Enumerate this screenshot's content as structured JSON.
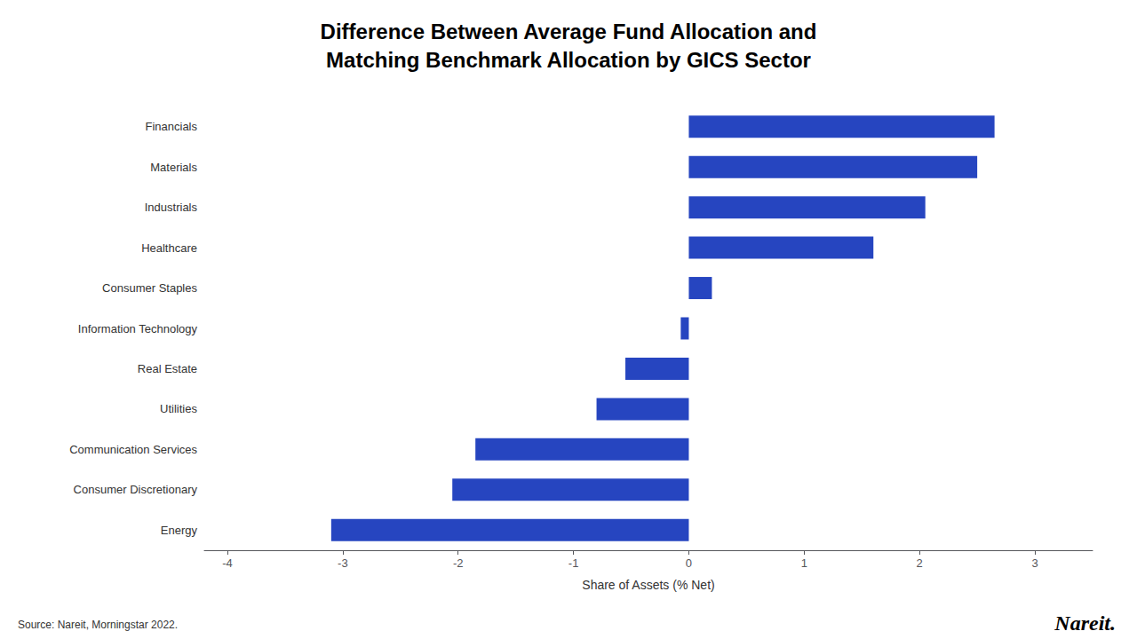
{
  "chart_data": {
    "type": "bar",
    "orientation": "horizontal",
    "title": "Difference Between Average Fund Allocation and\nMatching Benchmark Allocation by GICS Sector",
    "xlabel": "Share of Assets (% Net)",
    "categories": [
      "Energy",
      "Consumer Discretionary",
      "Communication Services",
      "Utilities",
      "Real Estate",
      "Information Technology",
      "Consumer Staples",
      "Healthcare",
      "Industrials",
      "Materials",
      "Financials"
    ],
    "values": [
      -3.1,
      -2.05,
      -1.85,
      -0.8,
      -0.55,
      -0.07,
      0.2,
      1.6,
      2.05,
      2.5,
      2.65
    ],
    "color": "#2645C0",
    "xlim": [
      -4.2,
      3.5
    ],
    "xticks": [
      -4,
      -3,
      -2,
      -1,
      0,
      1,
      2,
      3
    ],
    "grid": false,
    "annotations": [
      "Source: Nareit, Morningstar 2022.",
      "Nareit."
    ]
  }
}
